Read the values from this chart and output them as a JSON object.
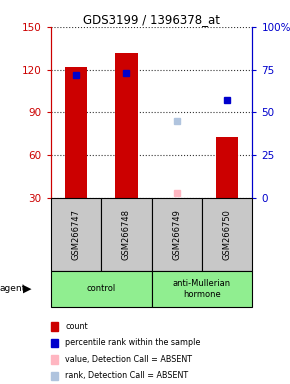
{
  "title": "GDS3199 / 1396378_at",
  "samples": [
    "GSM266747",
    "GSM266748",
    "GSM266749",
    "GSM266750"
  ],
  "bar_values": [
    122,
    132,
    null,
    73
  ],
  "bar_color": "#CC0000",
  "rank_values": [
    72,
    73,
    null,
    57
  ],
  "rank_color": "#0000CC",
  "absent_value_values": [
    null,
    null,
    33,
    null
  ],
  "absent_value_color": "#FFB6C1",
  "absent_rank_values": [
    null,
    null,
    45,
    null
  ],
  "absent_rank_color": "#B0C4DE",
  "ylim_left": [
    30,
    150
  ],
  "ylim_right": [
    0,
    100
  ],
  "yticks_left": [
    30,
    60,
    90,
    120,
    150
  ],
  "yticks_right": [
    0,
    25,
    50,
    75,
    100
  ],
  "ytick_labels_right": [
    "0",
    "25",
    "50",
    "75",
    "100%"
  ],
  "left_axis_color": "#CC0000",
  "right_axis_color": "#0000CC",
  "bar_width": 0.45,
  "sample_bg_color": "#C8C8C8",
  "group_label_color": "#90EE90",
  "legend_items": [
    {
      "label": "count",
      "color": "#CC0000"
    },
    {
      "label": "percentile rank within the sample",
      "color": "#0000CC"
    },
    {
      "label": "value, Detection Call = ABSENT",
      "color": "#FFB6C1"
    },
    {
      "label": "rank, Detection Call = ABSENT",
      "color": "#B0C4DE"
    }
  ]
}
